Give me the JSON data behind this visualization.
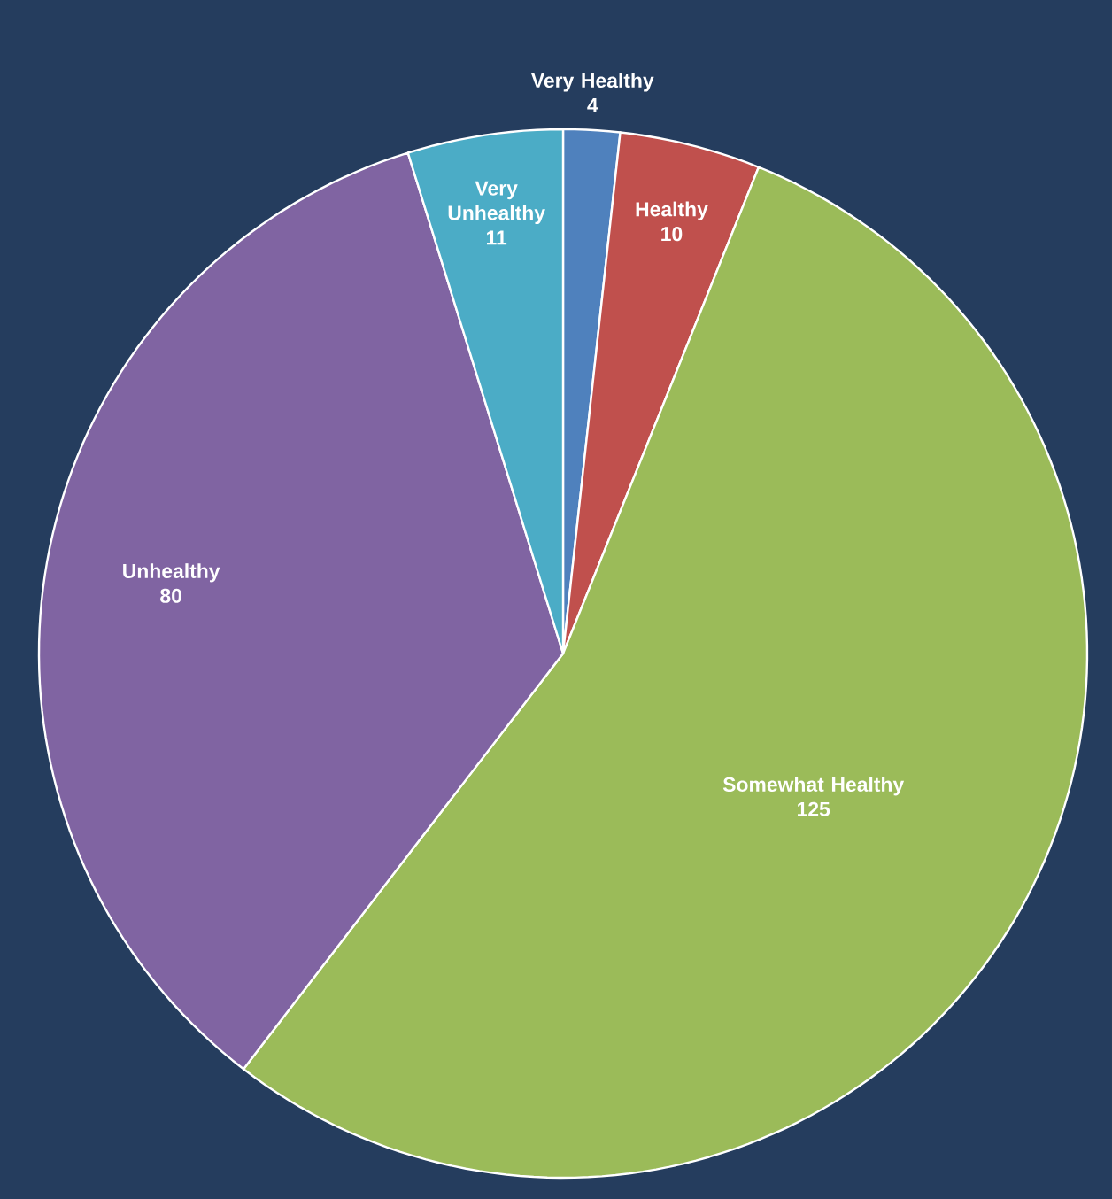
{
  "chart_data": {
    "type": "pie",
    "categories": [
      "Very Healthy",
      "Healthy",
      "Somewhat Healthy",
      "Unhealthy",
      "Very Unhealthy"
    ],
    "values": [
      4,
      10,
      125,
      80,
      11
    ],
    "colors": [
      "#4f81bd",
      "#c0504d",
      "#9bbb59",
      "#8064a2",
      "#4bacc6"
    ],
    "data_labels": true
  }
}
